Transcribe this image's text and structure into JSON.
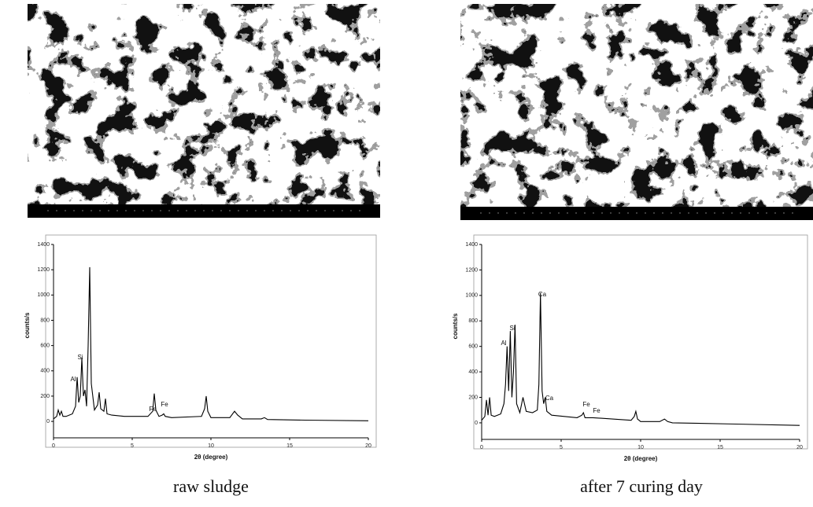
{
  "chart_data": [
    {
      "type": "line",
      "color": "#000000",
      "caption": "raw sludge",
      "xlabel": "2θ (degree)",
      "ylabel": "counts/s",
      "annotations": [
        "Al",
        "Si",
        "Fe",
        "Fe"
      ],
      "x": [
        0,
        0.2,
        0.3,
        0.4,
        0.5,
        0.6,
        0.8,
        1.2,
        1.4,
        1.5,
        1.6,
        1.7,
        1.8,
        1.9,
        2.0,
        2.1,
        2.2,
        2.3,
        2.4,
        2.6,
        2.8,
        2.9,
        3.0,
        3.2,
        3.3,
        3.4,
        3.7,
        4.5,
        6.0,
        6.3,
        6.4,
        6.5,
        6.7,
        6.9,
        7.0,
        7.1,
        7.5,
        9.4,
        9.6,
        9.7,
        9.8,
        10.0,
        11.2,
        11.5,
        11.7,
        12.0,
        13.2,
        13.4,
        13.6,
        16,
        20
      ],
      "values": [
        20,
        40,
        90,
        50,
        80,
        40,
        40,
        60,
        120,
        350,
        150,
        200,
        500,
        200,
        250,
        120,
        600,
        1220,
        300,
        90,
        130,
        230,
        100,
        80,
        180,
        60,
        50,
        40,
        40,
        80,
        220,
        90,
        40,
        50,
        60,
        40,
        30,
        40,
        100,
        200,
        80,
        30,
        30,
        80,
        50,
        20,
        20,
        30,
        15,
        10,
        5
      ],
      "xlim": [
        0,
        20
      ],
      "xticks": [
        0,
        5,
        10,
        15,
        20
      ],
      "ylim": [
        -130,
        1400
      ],
      "yticks": [
        0,
        200,
        400,
        600,
        800,
        1000,
        1200,
        1400
      ]
    },
    {
      "type": "line",
      "color": "#000000",
      "caption": "after 7 curing day",
      "xlabel": "2θ (degree)",
      "ylabel": "counts/s",
      "annotations": [
        "Al",
        "Si",
        "Ca",
        "Ca",
        "Fe",
        "Fe"
      ],
      "x": [
        0,
        0.2,
        0.3,
        0.4,
        0.5,
        0.6,
        0.8,
        1.2,
        1.4,
        1.5,
        1.6,
        1.7,
        1.8,
        1.9,
        2.0,
        2.1,
        2.2,
        2.4,
        2.6,
        2.8,
        3.2,
        3.5,
        3.6,
        3.7,
        3.8,
        3.9,
        4.0,
        4.1,
        4.4,
        6.0,
        6.3,
        6.4,
        6.5,
        7.0,
        9.4,
        9.6,
        9.7,
        9.8,
        10.0,
        11.2,
        11.5,
        11.7,
        12.0,
        16,
        20
      ],
      "values": [
        20,
        50,
        180,
        60,
        200,
        60,
        50,
        70,
        150,
        300,
        600,
        250,
        720,
        200,
        400,
        770,
        150,
        80,
        200,
        90,
        80,
        100,
        300,
        1020,
        250,
        150,
        200,
        90,
        60,
        40,
        60,
        80,
        40,
        40,
        20,
        50,
        90,
        30,
        10,
        10,
        30,
        10,
        0,
        -10,
        -20
      ],
      "xlim": [
        0,
        20
      ],
      "xticks": [
        0,
        5,
        10,
        15,
        20
      ],
      "ylim": [
        -130,
        1400
      ],
      "yticks": [
        0,
        200,
        400,
        600,
        800,
        1000,
        1200,
        1400
      ]
    }
  ]
}
